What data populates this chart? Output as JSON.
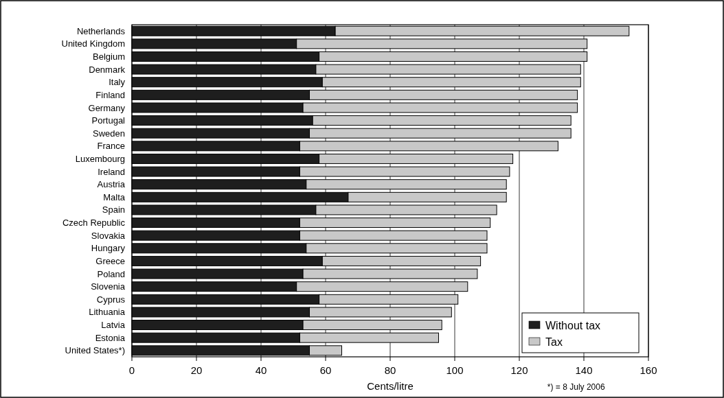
{
  "chart_data": {
    "type": "bar",
    "orientation": "horizontal",
    "stacked": true,
    "categories": [
      "Netherlands",
      "United Kingdom",
      "Belgium",
      "Denmark",
      "Italy",
      "Finland",
      "Germany",
      "Portugal",
      "Sweden",
      "France",
      "Luxembourg",
      "Ireland",
      "Austria",
      "Malta",
      "Spain",
      "Czech Republic",
      "Slovakia",
      "Hungary",
      "Greece",
      "Poland",
      "Slovenia",
      "Cyprus",
      "Lithuania",
      "Latvia",
      "Estonia",
      "United States*)"
    ],
    "series": [
      {
        "name": "Without tax",
        "color": "#1e1e1e",
        "values": [
          63,
          51,
          58,
          57,
          59,
          55,
          53,
          56,
          55,
          52,
          58,
          52,
          54,
          67,
          57,
          52,
          52,
          54,
          59,
          53,
          51,
          58,
          55,
          53,
          52,
          55
        ]
      },
      {
        "name": "Tax",
        "color": "#c8c8c8",
        "values": [
          91,
          90,
          83,
          82,
          80,
          83,
          85,
          80,
          81,
          80,
          60,
          65,
          62,
          49,
          56,
          59,
          58,
          56,
          49,
          54,
          53,
          43,
          44,
          43,
          43,
          10
        ]
      }
    ],
    "xlabel": "Cents/litre",
    "xlim": [
      0,
      160
    ],
    "xticks": [
      0,
      20,
      40,
      60,
      80,
      100,
      120,
      140,
      160
    ],
    "grid": "x",
    "legend": "bottom right",
    "annotations": [
      "*) = 8 July 2006"
    ]
  }
}
